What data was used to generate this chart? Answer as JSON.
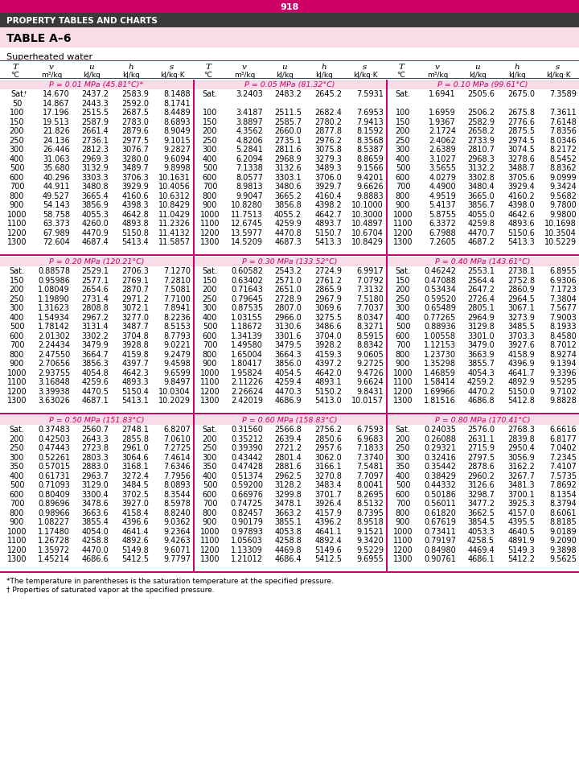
{
  "page_num": "918",
  "header_title": "PROPERTY TABLES AND CHARTS",
  "table_title": "TABLE A–6",
  "subtitle": "Superheated water",
  "footnote1": "*The temperature in parentheses is the saturation temperature at the specified pressure.",
  "footnote2": "† Properties of saturated vapor at the specified pressure.",
  "sections": [
    {
      "pressure": "P = 0.01 MPa (45.81°C)*",
      "rows": [
        [
          "Sat.†",
          "14.670",
          "2437.2",
          "2583.9",
          "8.1488"
        ],
        [
          "50",
          "14.867",
          "2443.3",
          "2592.0",
          "8.1741"
        ],
        [
          "100",
          "17.196",
          "2515.5",
          "2687.5",
          "8.4489"
        ],
        [
          "150",
          "19.513",
          "2587.9",
          "2783.0",
          "8.6893"
        ],
        [
          "200",
          "21.826",
          "2661.4",
          "2879.6",
          "8.9049"
        ],
        [
          "250",
          "24.136",
          "2736.1",
          "2977.5",
          "9.1015"
        ],
        [
          "300",
          "26.446",
          "2812.3",
          "3076.7",
          "9.2827"
        ],
        [
          "400",
          "31.063",
          "2969.3",
          "3280.0",
          "9.6094"
        ],
        [
          "500",
          "35.680",
          "3132.9",
          "3489.7",
          "9.8998"
        ],
        [
          "600",
          "40.296",
          "3303.3",
          "3706.3",
          "10.1631"
        ],
        [
          "700",
          "44.911",
          "3480.8",
          "3929.9",
          "10.4056"
        ],
        [
          "800",
          "49.527",
          "3665.4",
          "4160.6",
          "10.6312"
        ],
        [
          "900",
          "54.143",
          "3856.9",
          "4398.3",
          "10.8429"
        ],
        [
          "1000",
          "58.758",
          "4055.3",
          "4642.8",
          "11.0429"
        ],
        [
          "1100",
          "63.373",
          "4260.0",
          "4893.8",
          "11.2326"
        ],
        [
          "1200",
          "67.989",
          "4470.9",
          "5150.8",
          "11.4132"
        ],
        [
          "1300",
          "72.604",
          "4687.4",
          "5413.4",
          "11.5857"
        ]
      ]
    },
    {
      "pressure": "P = 0.05 MPa (81.32°C)",
      "rows": [
        [
          "Sat.",
          "3.2403",
          "2483.2",
          "2645.2",
          "7.5931"
        ],
        [
          "",
          "",
          "",
          "",
          ""
        ],
        [
          "100",
          "3.4187",
          "2511.5",
          "2682.4",
          "7.6953"
        ],
        [
          "150",
          "3.8897",
          "2585.7",
          "2780.2",
          "7.9413"
        ],
        [
          "200",
          "4.3562",
          "2660.0",
          "2877.8",
          "8.1592"
        ],
        [
          "250",
          "4.8206",
          "2735.1",
          "2976.2",
          "8.3568"
        ],
        [
          "300",
          "5.2841",
          "2811.6",
          "3075.8",
          "8.5387"
        ],
        [
          "400",
          "6.2094",
          "2968.9",
          "3279.3",
          "8.8659"
        ],
        [
          "500",
          "7.1338",
          "3132.6",
          "3489.3",
          "9.1566"
        ],
        [
          "600",
          "8.0577",
          "3303.1",
          "3706.0",
          "9.4201"
        ],
        [
          "700",
          "8.9813",
          "3480.6",
          "3929.7",
          "9.6626"
        ],
        [
          "800",
          "9.9047",
          "3665.2",
          "4160.4",
          "9.8883"
        ],
        [
          "900",
          "10.8280",
          "3856.8",
          "4398.2",
          "10.1000"
        ],
        [
          "1000",
          "11.7513",
          "4055.2",
          "4642.7",
          "10.3000"
        ],
        [
          "1100",
          "12.6745",
          "4259.9",
          "4893.7",
          "10.4897"
        ],
        [
          "1200",
          "13.5977",
          "4470.8",
          "5150.7",
          "10.6704"
        ],
        [
          "1300",
          "14.5209",
          "4687.3",
          "5413.3",
          "10.8429"
        ]
      ]
    },
    {
      "pressure": "P = 0.10 MPa (99.61°C)",
      "rows": [
        [
          "Sat.",
          "1.6941",
          "2505.6",
          "2675.0",
          "7.3589"
        ],
        [
          "",
          "",
          "",
          "",
          ""
        ],
        [
          "100",
          "1.6959",
          "2506.2",
          "2675.8",
          "7.3611"
        ],
        [
          "150",
          "1.9367",
          "2582.9",
          "2776.6",
          "7.6148"
        ],
        [
          "200",
          "2.1724",
          "2658.2",
          "2875.5",
          "7.8356"
        ],
        [
          "250",
          "2.4062",
          "2733.9",
          "2974.5",
          "8.0346"
        ],
        [
          "300",
          "2.6389",
          "2810.7",
          "3074.5",
          "8.2172"
        ],
        [
          "400",
          "3.1027",
          "2968.3",
          "3278.6",
          "8.5452"
        ],
        [
          "500",
          "3.5655",
          "3132.2",
          "3488.7",
          "8.8362"
        ],
        [
          "600",
          "4.0279",
          "3302.8",
          "3705.6",
          "9.0999"
        ],
        [
          "700",
          "4.4900",
          "3480.4",
          "3929.4",
          "9.3424"
        ],
        [
          "800",
          "4.9519",
          "3665.0",
          "4160.2",
          "9.5682"
        ],
        [
          "900",
          "5.4137",
          "3856.7",
          "4398.0",
          "9.7800"
        ],
        [
          "1000",
          "5.8755",
          "4055.0",
          "4642.6",
          "9.9800"
        ],
        [
          "1100",
          "6.3372",
          "4259.8",
          "4893.6",
          "10.1698"
        ],
        [
          "1200",
          "6.7988",
          "4470.7",
          "5150.6",
          "10.3504"
        ],
        [
          "1300",
          "7.2605",
          "4687.2",
          "5413.3",
          "10.5229"
        ]
      ]
    },
    {
      "pressure": "P = 0.20 MPa (120.21°C)",
      "rows": [
        [
          "Sat.",
          "0.88578",
          "2529.1",
          "2706.3",
          "7.1270"
        ],
        [
          "150",
          "0.95986",
          "2577.1",
          "2769.1",
          "7.2810"
        ],
        [
          "200",
          "1.08049",
          "2654.6",
          "2870.7",
          "7.5081"
        ],
        [
          "250",
          "1.19890",
          "2731.4",
          "2971.2",
          "7.7100"
        ],
        [
          "300",
          "1.31623",
          "2808.8",
          "3072.1",
          "7.8941"
        ],
        [
          "400",
          "1.54934",
          "2967.2",
          "3277.0",
          "8.2236"
        ],
        [
          "500",
          "1.78142",
          "3131.4",
          "3487.7",
          "8.5153"
        ],
        [
          "600",
          "2.01302",
          "3302.2",
          "3704.8",
          "8.7793"
        ],
        [
          "700",
          "2.24434",
          "3479.9",
          "3928.8",
          "9.0221"
        ],
        [
          "800",
          "2.47550",
          "3664.7",
          "4159.8",
          "9.2479"
        ],
        [
          "900",
          "2.70656",
          "3856.3",
          "4397.7",
          "9.4598"
        ],
        [
          "1000",
          "2.93755",
          "4054.8",
          "4642.3",
          "9.6599"
        ],
        [
          "1100",
          "3.16848",
          "4259.6",
          "4893.3",
          "9.8497"
        ],
        [
          "1200",
          "3.39938",
          "4470.5",
          "5150.4",
          "10.0304"
        ],
        [
          "1300",
          "3.63026",
          "4687.1",
          "5413.1",
          "10.2029"
        ]
      ]
    },
    {
      "pressure": "P = 0.30 MPa (133.52°C)",
      "rows": [
        [
          "Sat.",
          "0.60582",
          "2543.2",
          "2724.9",
          "6.9917"
        ],
        [
          "150",
          "0.63402",
          "2571.0",
          "2761.2",
          "7.0792"
        ],
        [
          "200",
          "0.71643",
          "2651.0",
          "2865.9",
          "7.3132"
        ],
        [
          "250",
          "0.79645",
          "2728.9",
          "2967.9",
          "7.5180"
        ],
        [
          "300",
          "0.87535",
          "2807.0",
          "3069.6",
          "7.7037"
        ],
        [
          "400",
          "1.03155",
          "2966.0",
          "3275.5",
          "8.0347"
        ],
        [
          "500",
          "1.18672",
          "3130.6",
          "3486.6",
          "8.3271"
        ],
        [
          "600",
          "1.34139",
          "3301.6",
          "3704.0",
          "8.5915"
        ],
        [
          "700",
          "1.49580",
          "3479.5",
          "3928.2",
          "8.8342"
        ],
        [
          "800",
          "1.65004",
          "3664.3",
          "4159.3",
          "9.0605"
        ],
        [
          "900",
          "1.80417",
          "3856.0",
          "4397.2",
          "9.2725"
        ],
        [
          "1000",
          "1.95824",
          "4054.5",
          "4642.0",
          "9.4726"
        ],
        [
          "1100",
          "2.11226",
          "4259.4",
          "4893.1",
          "9.6624"
        ],
        [
          "1200",
          "2.26624",
          "4470.3",
          "5150.2",
          "9.8431"
        ],
        [
          "1300",
          "2.42019",
          "4686.9",
          "5413.0",
          "10.0157"
        ]
      ]
    },
    {
      "pressure": "P = 0.40 MPa (143.61°C)",
      "rows": [
        [
          "Sat.",
          "0.46242",
          "2553.1",
          "2738.1",
          "6.8955"
        ],
        [
          "150",
          "0.47088",
          "2564.4",
          "2752.8",
          "6.9306"
        ],
        [
          "200",
          "0.53434",
          "2647.2",
          "2860.9",
          "7.1723"
        ],
        [
          "250",
          "0.59520",
          "2726.4",
          "2964.5",
          "7.3804"
        ],
        [
          "300",
          "0.65489",
          "2805.1",
          "3067.1",
          "7.5677"
        ],
        [
          "400",
          "0.77265",
          "2964.9",
          "3273.9",
          "7.9003"
        ],
        [
          "500",
          "0.88936",
          "3129.8",
          "3485.5",
          "8.1933"
        ],
        [
          "600",
          "1.00558",
          "3301.0",
          "3703.3",
          "8.4580"
        ],
        [
          "700",
          "1.12153",
          "3479.0",
          "3927.6",
          "8.7012"
        ],
        [
          "800",
          "1.23730",
          "3663.9",
          "4158.9",
          "8.9274"
        ],
        [
          "900",
          "1.35298",
          "3855.7",
          "4396.9",
          "9.1394"
        ],
        [
          "1000",
          "1.46859",
          "4054.3",
          "4641.7",
          "9.3396"
        ],
        [
          "1100",
          "1.58414",
          "4259.2",
          "4892.9",
          "9.5295"
        ],
        [
          "1200",
          "1.69966",
          "4470.2",
          "5150.0",
          "9.7102"
        ],
        [
          "1300",
          "1.81516",
          "4686.8",
          "5412.8",
          "9.8828"
        ]
      ]
    },
    {
      "pressure": "P = 0.50 MPa (151.83°C)",
      "rows": [
        [
          "Sat.",
          "0.37483",
          "2560.7",
          "2748.1",
          "6.8207"
        ],
        [
          "200",
          "0.42503",
          "2643.3",
          "2855.8",
          "7.0610"
        ],
        [
          "250",
          "0.47443",
          "2723.8",
          "2961.0",
          "7.2725"
        ],
        [
          "300",
          "0.52261",
          "2803.3",
          "3064.6",
          "7.4614"
        ],
        [
          "350",
          "0.57015",
          "2883.0",
          "3168.1",
          "7.6346"
        ],
        [
          "400",
          "0.61731",
          "2963.7",
          "3272.4",
          "7.7956"
        ],
        [
          "500",
          "0.71093",
          "3129.0",
          "3484.5",
          "8.0893"
        ],
        [
          "600",
          "0.80409",
          "3300.4",
          "3702.5",
          "8.3544"
        ],
        [
          "700",
          "0.89696",
          "3478.6",
          "3927.0",
          "8.5978"
        ],
        [
          "800",
          "0.98966",
          "3663.6",
          "4158.4",
          "8.8240"
        ],
        [
          "900",
          "1.08227",
          "3855.4",
          "4396.6",
          "9.0362"
        ],
        [
          "1000",
          "1.17480",
          "4054.0",
          "4641.4",
          "9.2364"
        ],
        [
          "1100",
          "1.26728",
          "4258.8",
          "4892.6",
          "9.4263"
        ],
        [
          "1200",
          "1.35972",
          "4470.0",
          "5149.8",
          "9.6071"
        ],
        [
          "1300",
          "1.45214",
          "4686.6",
          "5412.5",
          "9.7797"
        ]
      ]
    },
    {
      "pressure": "P = 0.60 MPa (158.83°C)",
      "rows": [
        [
          "Sat.",
          "0.31560",
          "2566.8",
          "2756.2",
          "6.7593"
        ],
        [
          "200",
          "0.35212",
          "2639.4",
          "2850.6",
          "6.9683"
        ],
        [
          "250",
          "0.39390",
          "2721.2",
          "2957.6",
          "7.1833"
        ],
        [
          "300",
          "0.43442",
          "2801.4",
          "3062.0",
          "7.3740"
        ],
        [
          "350",
          "0.47428",
          "2881.6",
          "3166.1",
          "7.5481"
        ],
        [
          "400",
          "0.51374",
          "2962.5",
          "3270.8",
          "7.7097"
        ],
        [
          "500",
          "0.59200",
          "3128.2",
          "3483.4",
          "8.0041"
        ],
        [
          "600",
          "0.66976",
          "3299.8",
          "3701.7",
          "8.2695"
        ],
        [
          "700",
          "0.74725",
          "3478.1",
          "3926.4",
          "8.5132"
        ],
        [
          "800",
          "0.82457",
          "3663.2",
          "4157.9",
          "8.7395"
        ],
        [
          "900",
          "0.90179",
          "3855.1",
          "4396.2",
          "8.9518"
        ],
        [
          "1000",
          "0.97893",
          "4053.8",
          "4641.1",
          "9.1521"
        ],
        [
          "1100",
          "1.05603",
          "4258.8",
          "4892.4",
          "9.3420"
        ],
        [
          "1200",
          "1.13309",
          "4469.8",
          "5149.6",
          "9.5229"
        ],
        [
          "1300",
          "1.21012",
          "4686.4",
          "5412.5",
          "9.6955"
        ]
      ]
    },
    {
      "pressure": "P = 0.80 MPa (170.41°C)",
      "rows": [
        [
          "Sat.",
          "0.24035",
          "2576.0",
          "2768.3",
          "6.6616"
        ],
        [
          "200",
          "0.26088",
          "2631.1",
          "2839.8",
          "6.8177"
        ],
        [
          "250",
          "0.29321",
          "2715.9",
          "2950.4",
          "7.0402"
        ],
        [
          "300",
          "0.32416",
          "2797.5",
          "3056.9",
          "7.2345"
        ],
        [
          "350",
          "0.35442",
          "2878.6",
          "3162.2",
          "7.4107"
        ],
        [
          "400",
          "0.38429",
          "2960.2",
          "3267.7",
          "7.5735"
        ],
        [
          "500",
          "0.44332",
          "3126.6",
          "3481.3",
          "7.8692"
        ],
        [
          "600",
          "0.50186",
          "3298.7",
          "3700.1",
          "8.1354"
        ],
        [
          "700",
          "0.56011",
          "3477.2",
          "3925.3",
          "8.3794"
        ],
        [
          "800",
          "0.61820",
          "3662.5",
          "4157.0",
          "8.6061"
        ],
        [
          "900",
          "0.67619",
          "3854.5",
          "4395.5",
          "8.8185"
        ],
        [
          "1000",
          "0.73411",
          "4053.3",
          "4640.5",
          "9.0189"
        ],
        [
          "1100",
          "0.79197",
          "4258.5",
          "4891.9",
          "9.2090"
        ],
        [
          "1200",
          "0.84980",
          "4469.4",
          "5149.3",
          "9.3898"
        ],
        [
          "1300",
          "0.90761",
          "4686.1",
          "5412.2",
          "9.5625"
        ]
      ]
    }
  ]
}
